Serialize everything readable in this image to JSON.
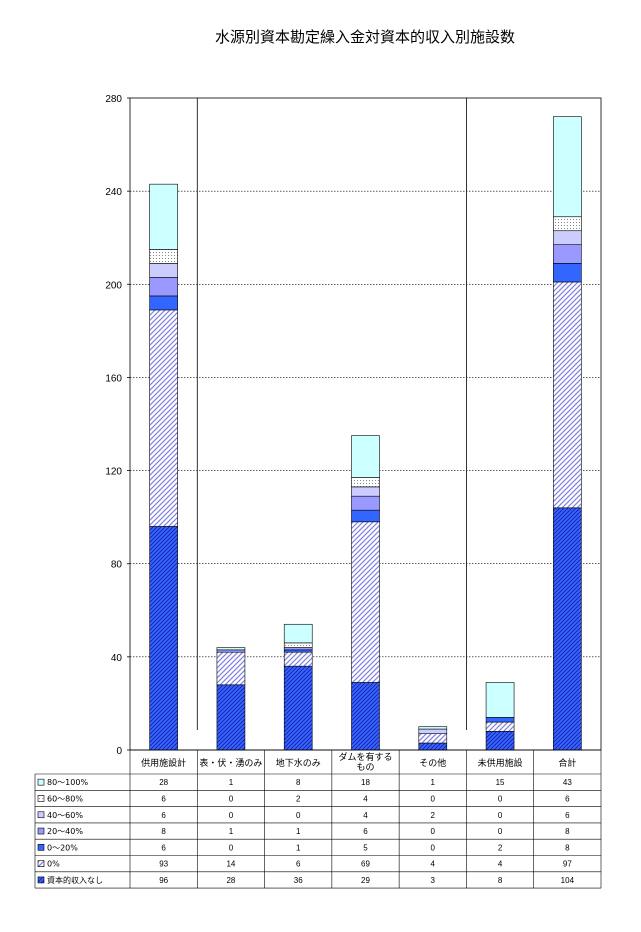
{
  "chart_data": {
    "type": "bar",
    "stacked": true,
    "title": "水源別資本勘定繰入金対資本的収入別施設数",
    "xlabel": "",
    "ylabel": "",
    "ylim": [
      0,
      280
    ],
    "yticks": [
      0,
      40,
      80,
      120,
      160,
      200,
      240,
      280
    ],
    "grid": true,
    "legend_placement": "table-left",
    "categories": [
      "供用施設計",
      "表・伏・湧のみ",
      "地下水のみ",
      "ダムを有するもの",
      "その他",
      "未供用施設",
      "合計"
    ],
    "category_lines": [
      [
        "供用施設計"
      ],
      [
        "表・伏・湧のみ"
      ],
      [
        "地下水のみ"
      ],
      [
        "ダムを有する",
        "もの"
      ],
      [
        "その他"
      ],
      [
        "未供用施設"
      ],
      [
        "合計"
      ]
    ],
    "series": [
      {
        "name": "資本的収入なし",
        "values": [
          96,
          28,
          36,
          29,
          3,
          8,
          104
        ],
        "color": "#3366ff",
        "pattern": "hatch-dense"
      },
      {
        "name": "0%",
        "values": [
          93,
          14,
          6,
          69,
          4,
          4,
          97
        ],
        "color": "#9999ff",
        "pattern": "hatch-light"
      },
      {
        "name": "0～20%",
        "values": [
          6,
          0,
          1,
          5,
          0,
          2,
          8
        ],
        "color": "#3366ff",
        "pattern": "solid"
      },
      {
        "name": "20～40%",
        "values": [
          8,
          1,
          1,
          6,
          0,
          0,
          8
        ],
        "color": "#9999ff",
        "pattern": "solid"
      },
      {
        "name": "40～60%",
        "values": [
          6,
          0,
          0,
          4,
          2,
          0,
          6
        ],
        "color": "#ccccff",
        "pattern": "solid"
      },
      {
        "name": "60～80%",
        "values": [
          6,
          0,
          2,
          4,
          0,
          0,
          6
        ],
        "color": "#f2f2f2",
        "pattern": "dots"
      },
      {
        "name": "80～100%",
        "values": [
          28,
          1,
          8,
          18,
          1,
          15,
          43
        ],
        "color": "#ccffff",
        "pattern": "solid"
      }
    ],
    "table_row_order": [
      "80～100%",
      "60～80%",
      "40～60%",
      "20～40%",
      "0～20%",
      "0%",
      "資本的収入なし"
    ]
  }
}
